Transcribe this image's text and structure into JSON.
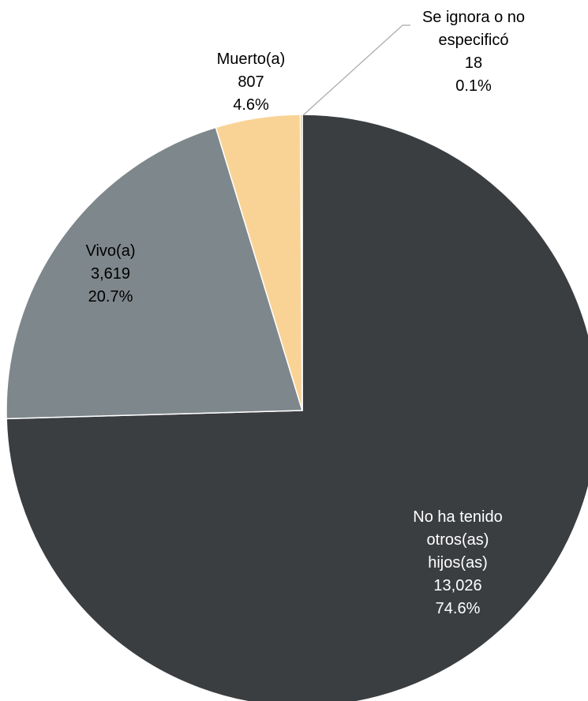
{
  "chart_data": {
    "type": "pie",
    "categories": [
      "No ha tenido otros(as) hijos(as)",
      "Vivo(a)",
      "Muerto(a)",
      "Se ignora o no especificó"
    ],
    "values": [
      13026,
      3619,
      807,
      18
    ],
    "value_labels": [
      "13,026",
      "3,619",
      "807",
      "18"
    ],
    "percentages": [
      74.6,
      20.7,
      4.6,
      0.1
    ],
    "percentage_labels": [
      "74.6%",
      "20.7%",
      "4.6%",
      "0.1%"
    ],
    "colors": [
      "#3b3e41",
      "#7e878b",
      "#f9d396",
      "#f5a81c"
    ]
  }
}
